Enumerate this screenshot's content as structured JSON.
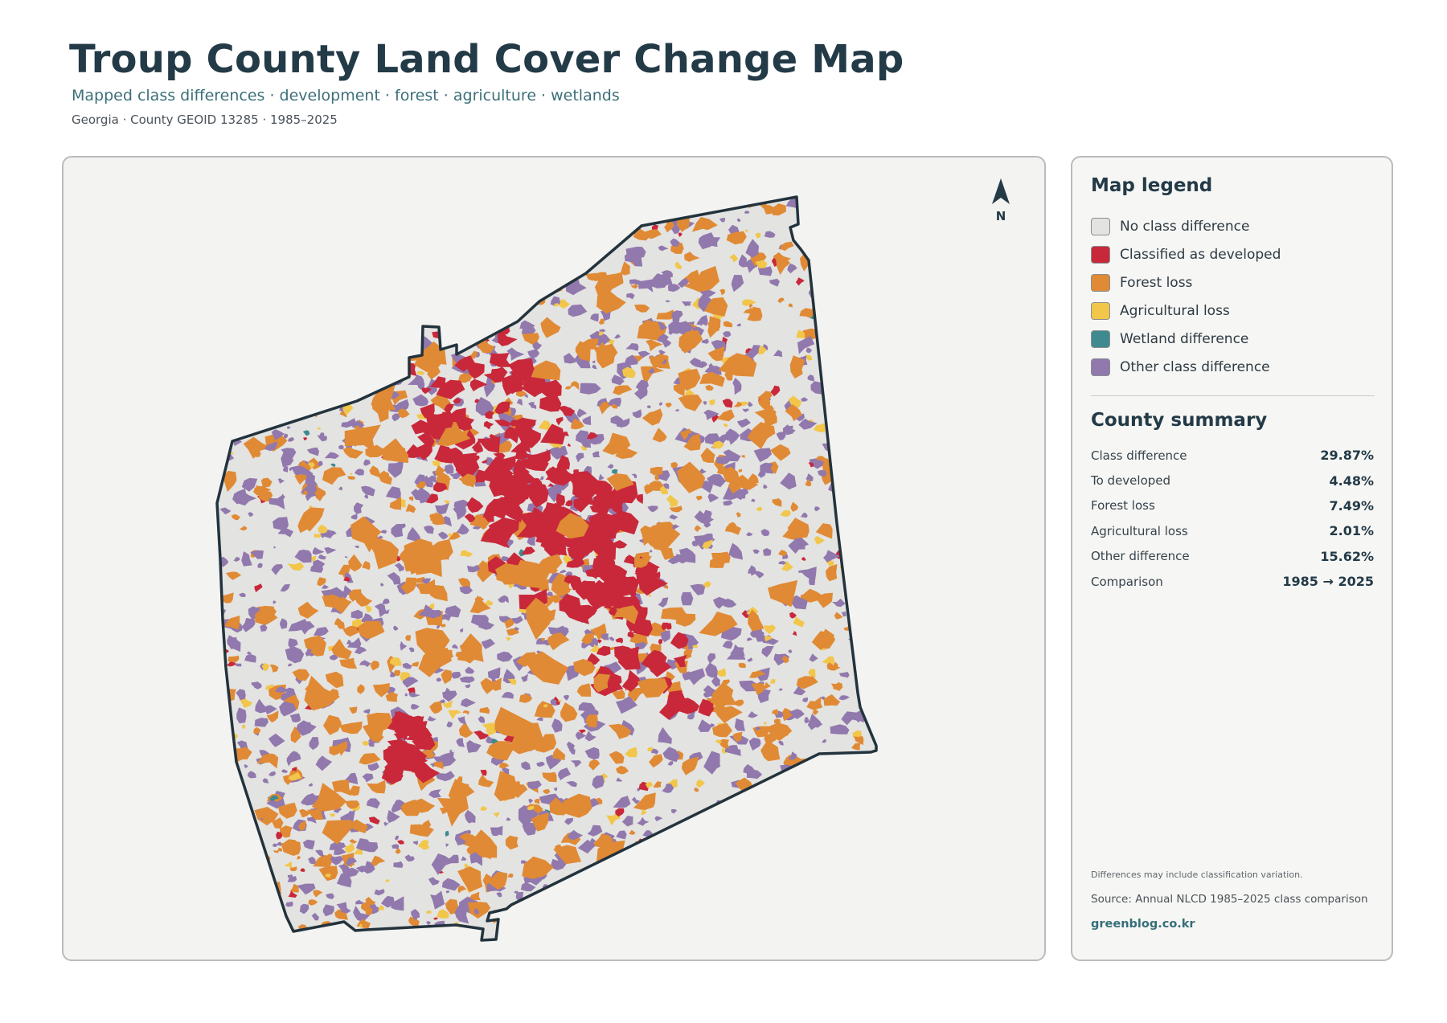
{
  "header": {
    "title": "Troup County Land Cover Change Map",
    "subtitle": "Mapped class differences · development · forest · agriculture · wetlands",
    "meta": "Georgia · County GEOID 13285 · 1985–2025"
  },
  "map": {
    "north_label": "N",
    "colors": {
      "no_change": "#e3e3e1",
      "developed": "#c8283a",
      "forest_loss": "#e08a35",
      "agricultural_loss": "#f1c64a",
      "wetland": "#3f8a8e",
      "other": "#9178ad",
      "boundary": "#23333d"
    }
  },
  "legend": {
    "title": "Map legend",
    "items": [
      {
        "label": "No class difference",
        "color": "#e3e3e1"
      },
      {
        "label": "Classified as developed",
        "color": "#c8283a"
      },
      {
        "label": "Forest loss",
        "color": "#e08a35"
      },
      {
        "label": "Agricultural loss",
        "color": "#f1c64a"
      },
      {
        "label": "Wetland difference",
        "color": "#3f8a8e"
      },
      {
        "label": "Other class difference",
        "color": "#9178ad"
      }
    ]
  },
  "summary": {
    "title": "County summary",
    "rows": [
      {
        "label": "Class difference",
        "value": "29.87%"
      },
      {
        "label": "To developed",
        "value": "4.48%"
      },
      {
        "label": "Forest loss",
        "value": "7.49%"
      },
      {
        "label": "Agricultural loss",
        "value": "2.01%"
      },
      {
        "label": "Other difference",
        "value": "15.62%"
      },
      {
        "label": "Comparison",
        "value": "1985 → 2025"
      }
    ]
  },
  "footer": {
    "note": "Differences may include classification variation.",
    "source": "Source: Annual NLCD 1985–2025 class comparison",
    "site": "greenblog.co.kr"
  }
}
